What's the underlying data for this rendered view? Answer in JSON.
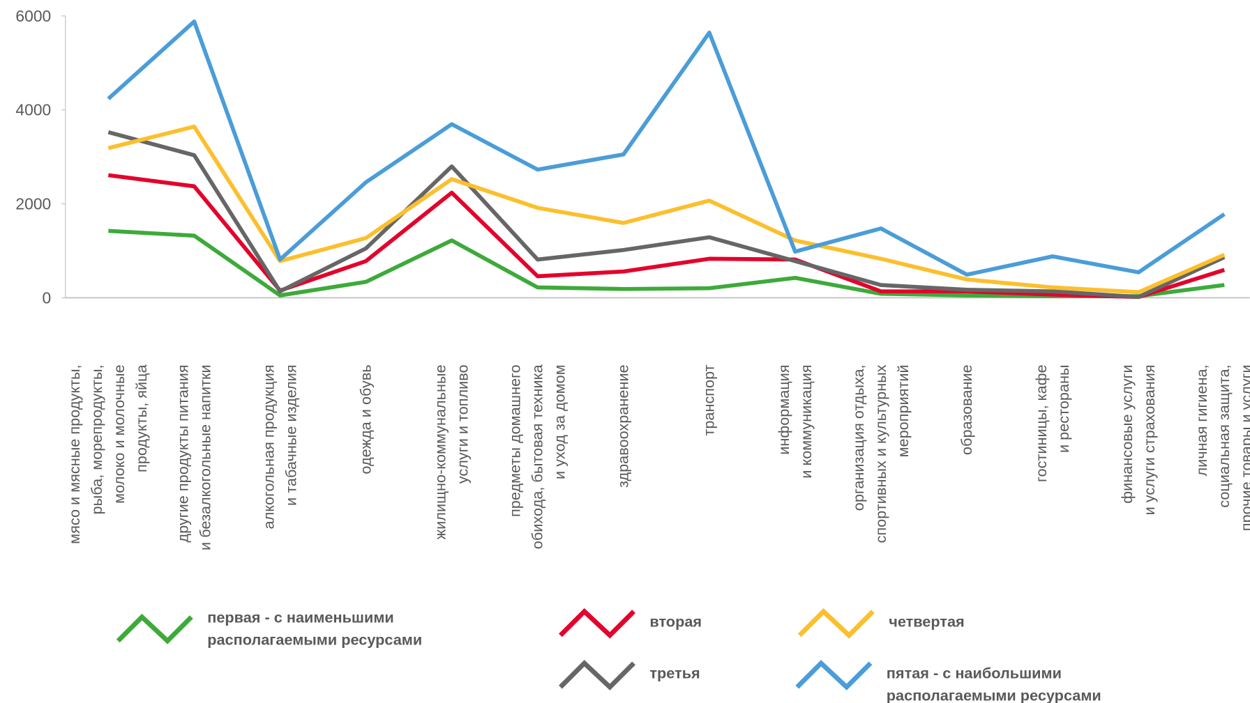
{
  "chart_data": {
    "type": "line",
    "categories": [
      "мясо и мясные продукты,\nрыба, морепродукты,\nмолоко и молочные\nпродукты,  яйца",
      "другие продукты питания\nи безалкогольные напитки",
      "алкогольная продукция\nи табачные изделия",
      "одежда и обувь",
      "жилищно-коммунальные\nуслуги и топливо",
      "предметы домашнего\nобихода, бытовая техника\nи уход за домом",
      "здравоохранение",
      "транспорт",
      "информация\nи коммуникация",
      "организация отдыха,\nспортивных и культурных\nмероприятий",
      "образование",
      "гостиницы, кафе\nи рестораны",
      "финансовые услуги\nи услуги страхования",
      "личная гигиена,\nсоциальная защита,\nпрочие товары и услуги"
    ],
    "series": [
      {
        "name": "первая - с наименьшими\nрасполагаемыми ресурсами",
        "color": "#3daa3a",
        "values": [
          1424,
          1322,
          50,
          339,
          1220,
          220,
          186,
          203,
          424,
          85,
          51,
          34,
          34,
          271
        ]
      },
      {
        "name": "вторая",
        "color": "#e3022c",
        "values": [
          2610,
          2373,
          153,
          780,
          2237,
          458,
          559,
          830,
          814,
          136,
          136,
          68,
          17,
          593
        ]
      },
      {
        "name": "третья",
        "color": "#666666",
        "values": [
          3525,
          3034,
          136,
          1051,
          2797,
          814,
          1017,
          1288,
          780,
          271,
          170,
          136,
          17,
          864
        ]
      },
      {
        "name": "четвертая",
        "color": "#fcbf2d",
        "values": [
          3186,
          3644,
          780,
          1271,
          2525,
          1915,
          1593,
          2068,
          1220,
          830,
          390,
          220,
          119,
          915
        ]
      },
      {
        "name": "пятая - с наибольшими\nрасполагаемыми ресурсами",
        "color": "#4a9dd8",
        "values": [
          4237,
          5881,
          814,
          2458,
          3695,
          2729,
          3051,
          5644,
          983,
          1475,
          492,
          881,
          542,
          1780
        ]
      }
    ],
    "ylim": [
      0,
      6000
    ],
    "yticks": [
      0,
      2000,
      4000,
      6000
    ]
  }
}
